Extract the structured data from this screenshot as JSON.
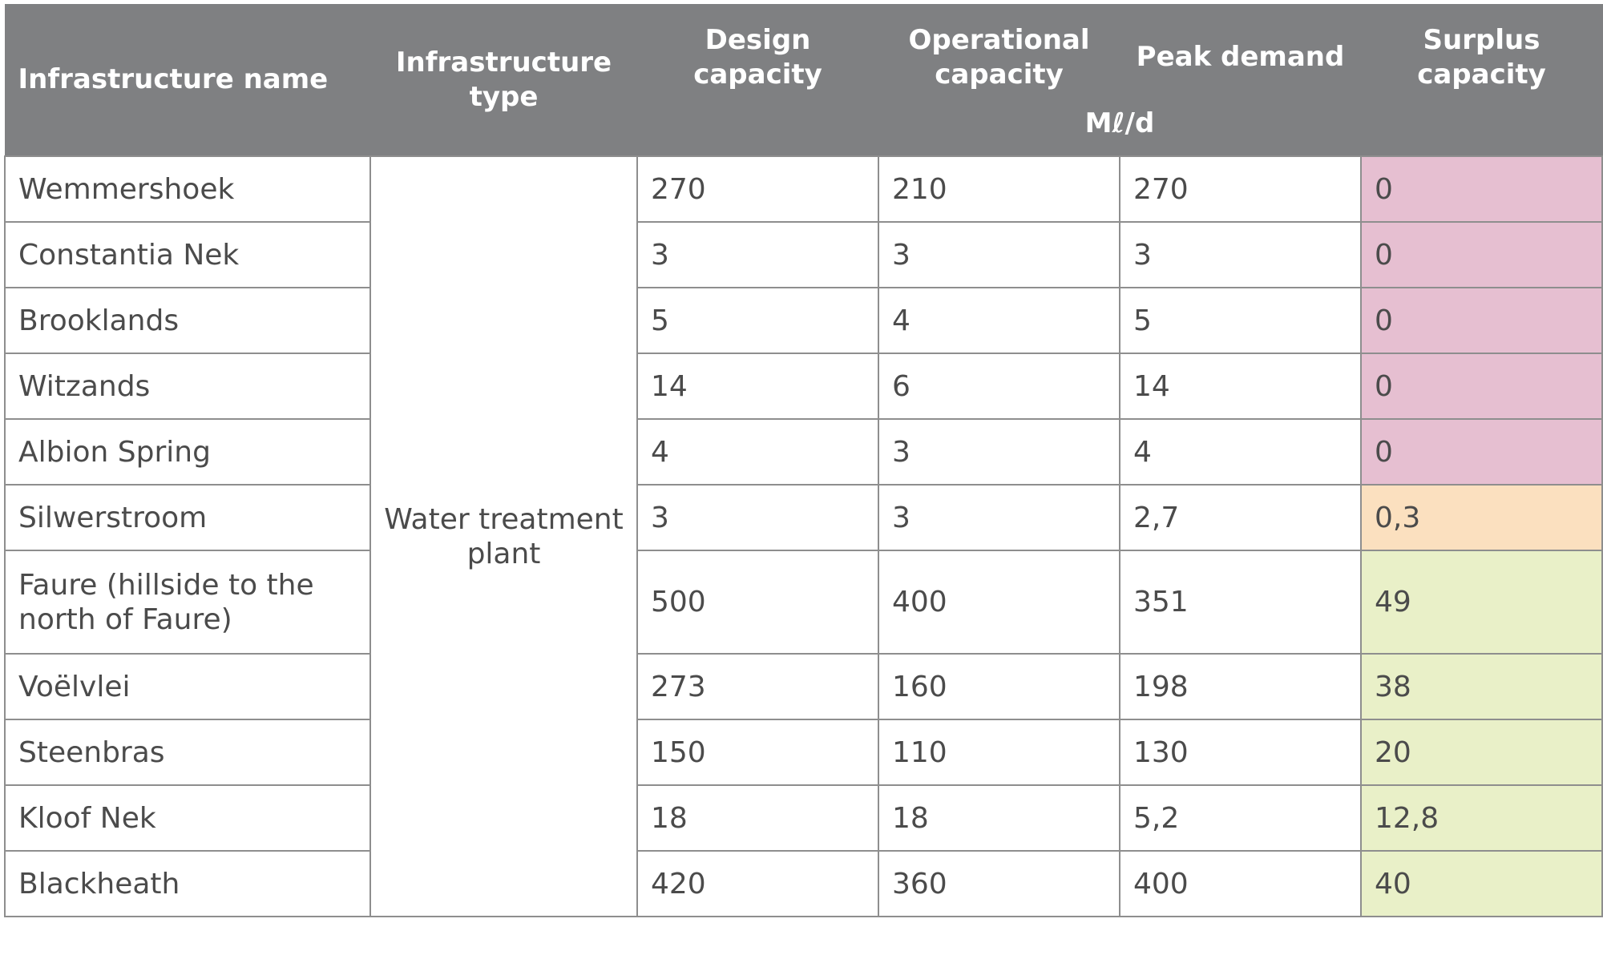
{
  "header": {
    "name": "Infrastructure name",
    "type": "Infrastructure type",
    "design": "Design capacity",
    "operational": "Operational capacity",
    "peak": "Peak demand",
    "surplus": "Surplus capacity",
    "unit": "Mℓ/d"
  },
  "type_value": "Water treatment plant",
  "rows": [
    {
      "name": "Wemmershoek",
      "design": "270",
      "operational": "210",
      "peak": "270",
      "surplus": "0"
    },
    {
      "name": "Constantia Nek",
      "design": "3",
      "operational": "3",
      "peak": "3",
      "surplus": "0"
    },
    {
      "name": "Brooklands",
      "design": "5",
      "operational": "4",
      "peak": "5",
      "surplus": "0"
    },
    {
      "name": "Witzands",
      "design": "14",
      "operational": "6",
      "peak": "14",
      "surplus": "0"
    },
    {
      "name": "Albion Spring",
      "design": "4",
      "operational": "3",
      "peak": "4",
      "surplus": "0"
    },
    {
      "name": "Silwerstroom",
      "design": "3",
      "operational": "3",
      "peak": "2,7",
      "surplus": "0,3"
    },
    {
      "name": "Faure (hillside to the north of Faure)",
      "design": "500",
      "operational": "400",
      "peak": "351",
      "surplus": "49"
    },
    {
      "name": "Voëlvlei",
      "design": "273",
      "operational": "160",
      "peak": "198",
      "surplus": "38"
    },
    {
      "name": "Steenbras",
      "design": "150",
      "operational": "110",
      "peak": "130",
      "surplus": "20"
    },
    {
      "name": "Kloof Nek",
      "design": "18",
      "operational": "18",
      "peak": "5,2",
      "surplus": "12,8"
    },
    {
      "name": "Blackheath",
      "design": "420",
      "operational": "360",
      "peak": "400",
      "surplus": "40"
    }
  ],
  "colors": {
    "header_bg": "#7f8082",
    "surplus_zero": "#e6bfd1",
    "surplus_low": "#fbe0bf",
    "surplus_positive": "#e9f0c8"
  }
}
